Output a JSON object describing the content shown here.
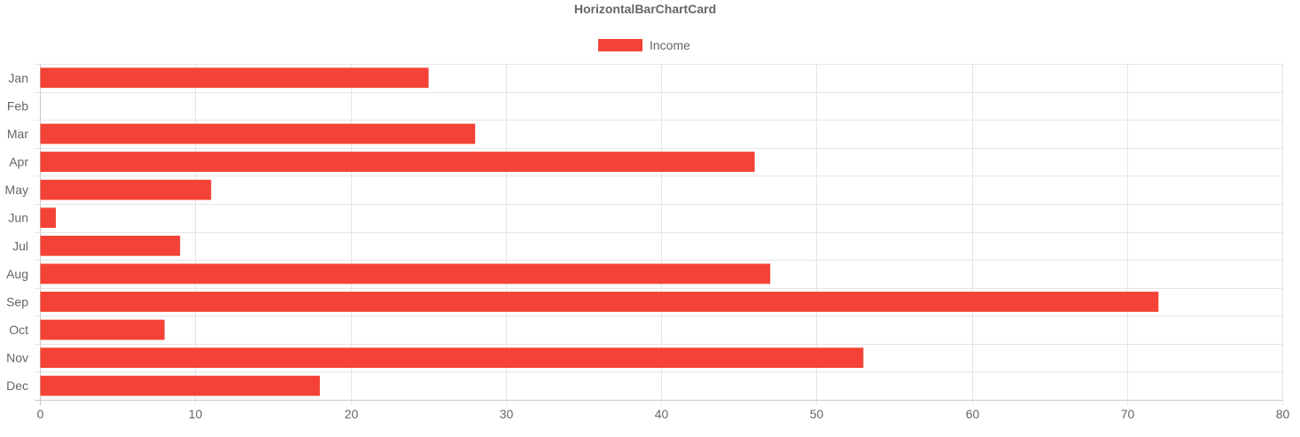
{
  "chart_data": {
    "type": "bar",
    "orientation": "horizontal",
    "title": "HorizontalBarChartCard",
    "categories": [
      "Jan",
      "Feb",
      "Mar",
      "Apr",
      "May",
      "Jun",
      "Jul",
      "Aug",
      "Sep",
      "Oct",
      "Nov",
      "Dec"
    ],
    "series": [
      {
        "name": "Income",
        "color": "#f44336",
        "values": [
          25,
          0,
          28,
          46,
          11,
          1,
          9,
          47,
          72,
          8,
          53,
          18
        ]
      }
    ],
    "xlim": [
      0,
      80
    ],
    "x_ticks": [
      "0",
      "10",
      "20",
      "30",
      "40",
      "50",
      "60",
      "70",
      "80"
    ],
    "grid": true,
    "legend_position": "top"
  }
}
